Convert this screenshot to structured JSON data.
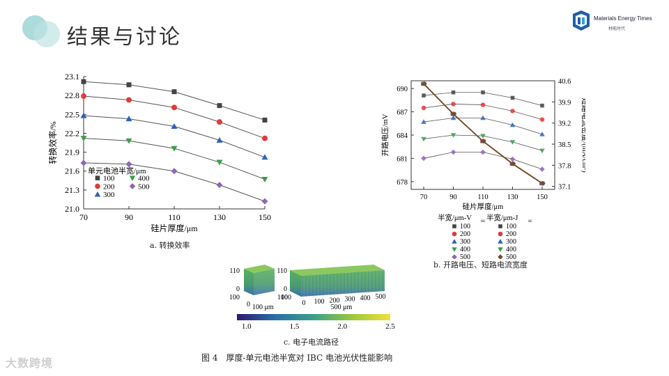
{
  "slide": {
    "title": "结果与讨论",
    "logo_text": "Materials Energy Times",
    "logo_sub": "材能时代",
    "watermark": "大数跨境"
  },
  "captions": {
    "a": "a. 转换效率",
    "b": "b. 开路电压、短路电流宽度",
    "c": "c. 电子电流路径",
    "figure": "图 4　厚度-单元电池半宽对 IBC 电池光伏性能影响"
  },
  "colors": {
    "c100": "#444444",
    "c200": "#e23a3a",
    "c300": "#2a62b8",
    "c400": "#3a9e48",
    "c500": "#9163b8",
    "line": "#555555",
    "jsc": "#7a4a2a"
  },
  "chart_data": [
    {
      "type": "line",
      "panel": "a",
      "x": [
        70,
        90,
        110,
        130,
        150
      ],
      "xlabel": "硅片厚度/μm",
      "ylabel": "转换效率/%",
      "ylim": [
        21.0,
        23.1
      ],
      "xticks": [
        "70",
        "90",
        "110",
        "130",
        "150"
      ],
      "yticks": [
        "21.0",
        "21.3",
        "21.6",
        "21.9",
        "22.2",
        "22.5",
        "22.8",
        "23.1"
      ],
      "legend_title": "单元电池半宽/μm",
      "legend_position": "bottom-left",
      "series": [
        {
          "name": "100",
          "marker": "square",
          "values": [
            23.02,
            22.97,
            22.86,
            22.64,
            22.41
          ]
        },
        {
          "name": "200",
          "marker": "circle",
          "values": [
            22.79,
            22.73,
            22.61,
            22.38,
            22.12
          ]
        },
        {
          "name": "300",
          "marker": "triangle-up",
          "values": [
            22.48,
            22.43,
            22.31,
            22.09,
            21.82
          ]
        },
        {
          "name": "400",
          "marker": "triangle-down",
          "values": [
            22.12,
            22.08,
            21.96,
            21.74,
            21.47
          ]
        },
        {
          "name": "500",
          "marker": "diamond",
          "values": [
            21.73,
            21.71,
            21.6,
            21.38,
            21.12
          ]
        }
      ]
    },
    {
      "type": "line",
      "panel": "b",
      "x": [
        70,
        90,
        110,
        130,
        150
      ],
      "xlabel": "硅片厚度/μm",
      "ylabel_left": "开路电压/mV",
      "ylabel_right": "短路电流密度/(mA/cm²)",
      "ylim_left": [
        677,
        691
      ],
      "ylim_right": [
        37.0,
        40.6
      ],
      "xticks": [
        "70",
        "90",
        "110",
        "130",
        "150"
      ],
      "yticks_left": [
        "678",
        "681",
        "684",
        "687",
        "690"
      ],
      "yticks_right": [
        "37.1",
        "37.8",
        "38.5",
        "39.2",
        "39.9",
        "40.6"
      ],
      "legend_title_left": "半宽/μm-V",
      "legend_title_left_sub": "oc",
      "legend_title_right": "半宽/μm-J",
      "legend_title_right_sub": "sc",
      "legend_position": "below",
      "series_voc": [
        {
          "name": "100",
          "values": [
            689.1,
            689.5,
            689.5,
            688.8,
            687.8
          ]
        },
        {
          "name": "200",
          "values": [
            687.5,
            688.0,
            687.9,
            687.1,
            686.0
          ]
        },
        {
          "name": "300",
          "values": [
            685.7,
            686.2,
            686.2,
            685.3,
            684.1
          ]
        },
        {
          "name": "400",
          "values": [
            683.5,
            684.0,
            683.9,
            683.1,
            682.0
          ]
        },
        {
          "name": "500",
          "values": [
            681.0,
            681.8,
            681.8,
            680.9,
            679.6
          ]
        }
      ],
      "series_jsc": [
        {
          "name": "100",
          "values": [
            40.5,
            39.5,
            38.6,
            37.85,
            37.2
          ]
        },
        {
          "name": "200",
          "values": [
            40.5,
            39.5,
            38.6,
            37.85,
            37.2
          ]
        },
        {
          "name": "300",
          "values": [
            40.5,
            39.5,
            38.6,
            37.85,
            37.2
          ]
        },
        {
          "name": "400",
          "values": [
            40.5,
            39.5,
            38.6,
            37.85,
            37.2
          ]
        },
        {
          "name": "500",
          "values": [
            40.5,
            39.5,
            38.6,
            37.85,
            37.2
          ]
        }
      ]
    },
    {
      "type": "heatmap",
      "panel": "c",
      "colorbar_ticks": [
        "1.0",
        "1.5",
        "2.0",
        "2.5"
      ],
      "colorbar_range": [
        0.9,
        2.5
      ],
      "left_box_labels": {
        "z_top": "110",
        "z_zero": "0",
        "y_left": "100",
        "y_zero": "0",
        "x_end": "100 μm",
        "x_right": "100"
      },
      "right_box_labels": {
        "z_top": "110",
        "z_zero": "0",
        "y_left": "100",
        "x_ticks": [
          "0",
          "100",
          "200",
          "300",
          "400",
          "500"
        ],
        "x_unit": "500 μm"
      }
    }
  ]
}
